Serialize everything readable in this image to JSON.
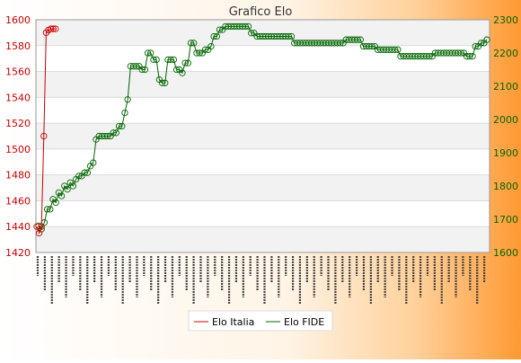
{
  "chart_data": {
    "type": "line",
    "title": "Grafico Elo",
    "x_tick_labels_note": "dense rotated date labels, illegible",
    "left_axis": {
      "ylim": [
        1420,
        1600
      ],
      "ticks": [
        1420,
        1440,
        1460,
        1480,
        1500,
        1520,
        1540,
        1560,
        1580,
        1600
      ],
      "color": "#cc0000"
    },
    "right_axis": {
      "ylim": [
        1600,
        2300
      ],
      "ticks": [
        1600,
        1700,
        1800,
        1900,
        2000,
        2100,
        2200,
        2300
      ],
      "color": "#006600"
    },
    "grid": true,
    "legend_placement": "bottom-center",
    "series": [
      {
        "name": "Elo Italia",
        "axis": "left",
        "color": "#cc0000",
        "values": [
          1440,
          1435,
          1440,
          1510,
          1590,
          1592,
          1593,
          1593,
          1593
        ]
      },
      {
        "name": "Elo FIDE",
        "axis": "right",
        "color": "#006600",
        "values": [
          1680,
          1670,
          1690,
          1730,
          1730,
          1760,
          1750,
          1780,
          1770,
          1800,
          1790,
          1810,
          1800,
          1820,
          1830,
          1830,
          1840,
          1840,
          1860,
          1870,
          1940,
          1950,
          1950,
          1950,
          1950,
          1950,
          1960,
          1960,
          1980,
          1980,
          2020,
          2060,
          2160,
          2160,
          2160,
          2160,
          2150,
          2150,
          2200,
          2200,
          2180,
          2180,
          2120,
          2110,
          2110,
          2180,
          2180,
          2180,
          2150,
          2150,
          2140,
          2170,
          2170,
          2230,
          2230,
          2200,
          2200,
          2200,
          2210,
          2210,
          2220,
          2250,
          2250,
          2270,
          2270,
          2280,
          2280,
          2280,
          2280,
          2280,
          2280,
          2280,
          2280,
          2280,
          2260,
          2260,
          2250,
          2250,
          2250,
          2250,
          2250,
          2250,
          2250,
          2250,
          2250,
          2250,
          2250,
          2250,
          2250,
          2230,
          2230,
          2230,
          2230,
          2230,
          2230,
          2230,
          2230,
          2230,
          2230,
          2230,
          2230,
          2230,
          2230,
          2230,
          2230,
          2230,
          2230,
          2240,
          2240,
          2240,
          2240,
          2240,
          2240,
          2220,
          2220,
          2220,
          2220,
          2220,
          2210,
          2210,
          2210,
          2210,
          2210,
          2210,
          2210,
          2210,
          2190,
          2190,
          2190,
          2190,
          2190,
          2190,
          2190,
          2190,
          2190,
          2190,
          2190,
          2190,
          2200,
          2200,
          2200,
          2200,
          2200,
          2200,
          2200,
          2200,
          2200,
          2200,
          2200,
          2190,
          2190,
          2190,
          2220,
          2220,
          2230,
          2230,
          2240
        ]
      }
    ]
  }
}
